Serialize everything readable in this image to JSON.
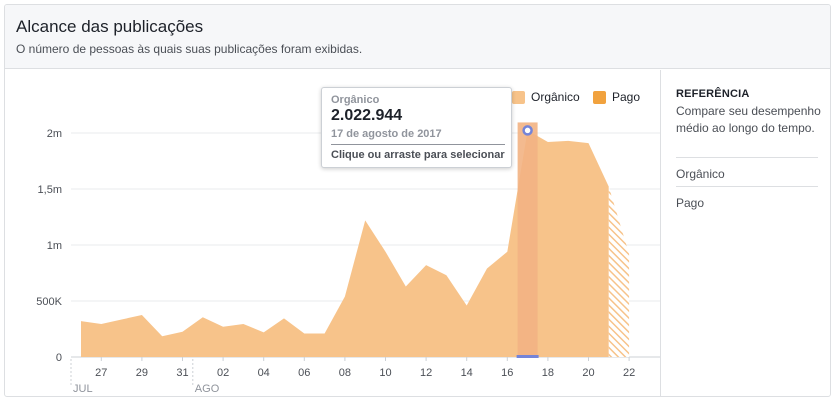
{
  "header": {
    "title": "Alcance das publicações",
    "subtitle": "O número de pessoas às quais suas publicações foram exibidas."
  },
  "legend": [
    {
      "label": "Orgânico",
      "color": "#f7c38a"
    },
    {
      "label": "Pago",
      "color": "#f1a23e"
    }
  ],
  "tooltip": {
    "series": "Orgânico",
    "value": "2.022.944",
    "date": "17 de agosto de 2017",
    "hint": "Clique ou arraste para selecionar"
  },
  "sidebar": {
    "title": "REFERÊNCIA",
    "description": "Compare seu desempenho médio ao longo do tempo.",
    "items": [
      {
        "label": "Orgânico"
      },
      {
        "label": "Pago"
      }
    ]
  },
  "colors": {
    "organic": "#f7c38a",
    "paid": "#f1a23e",
    "highlight": "#f2b383",
    "marker": "#7484d8"
  },
  "chart_data": {
    "type": "area",
    "x": [
      "2017-07-26",
      "2017-07-27",
      "2017-07-28",
      "2017-07-29",
      "2017-07-30",
      "2017-07-31",
      "2017-08-01",
      "2017-08-02",
      "2017-08-03",
      "2017-08-04",
      "2017-08-05",
      "2017-08-06",
      "2017-08-07",
      "2017-08-08",
      "2017-08-09",
      "2017-08-10",
      "2017-08-11",
      "2017-08-12",
      "2017-08-13",
      "2017-08-14",
      "2017-08-15",
      "2017-08-16",
      "2017-08-17",
      "2017-08-18",
      "2017-08-19",
      "2017-08-20",
      "2017-08-21",
      "2017-08-22"
    ],
    "series": [
      {
        "name": "Orgânico",
        "values": [
          320000,
          295000,
          335000,
          375000,
          185000,
          225000,
          355000,
          270000,
          295000,
          220000,
          345000,
          210000,
          210000,
          540000,
          1220000,
          940000,
          630000,
          820000,
          730000,
          460000,
          790000,
          940000,
          2022944,
          1920000,
          1930000,
          1910000,
          1520000,
          920000
        ]
      },
      {
        "name": "Pago",
        "values": [
          0,
          0,
          0,
          0,
          0,
          0,
          0,
          0,
          0,
          0,
          0,
          0,
          0,
          0,
          0,
          0,
          0,
          0,
          0,
          0,
          0,
          0,
          0,
          0,
          0,
          0,
          0,
          0
        ]
      }
    ],
    "y_ticks": [
      "0",
      "500K",
      "1m",
      "1,5m",
      "2m"
    ],
    "ylim": [
      0,
      2500000
    ],
    "x_tick_labels": [
      "27",
      "29",
      "31",
      "02",
      "04",
      "06",
      "08",
      "10",
      "12",
      "14",
      "16",
      "18",
      "20",
      "22"
    ],
    "month_labels": [
      "JUL",
      "AGO"
    ],
    "highlight_date": "2017-08-17",
    "partial_last_point": true,
    "grid": true,
    "legend_position": "top-right"
  }
}
